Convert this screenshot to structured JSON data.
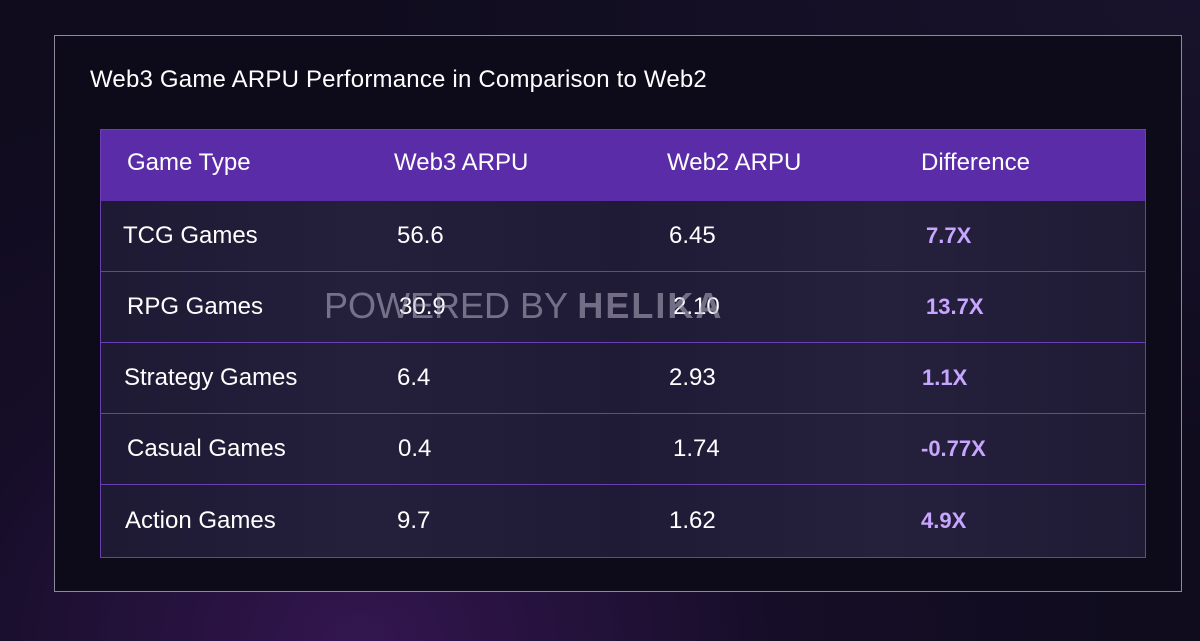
{
  "title": "Web3 Game ARPU Performance in Comparison to Web2",
  "columns": [
    "Game Type",
    "Web3 ARPU",
    "Web2 ARPU",
    "Difference"
  ],
  "rows": [
    {
      "game_type": "TCG Games",
      "web3_arpu": "56.6",
      "web2_arpu": "6.45",
      "difference": "7.7X"
    },
    {
      "game_type": "RPG Games",
      "web3_arpu": "30.9",
      "web2_arpu": "2.10",
      "difference": "13.7X"
    },
    {
      "game_type": "Strategy Games",
      "web3_arpu": "6.4",
      "web2_arpu": "2.93",
      "difference": "1.1X"
    },
    {
      "game_type": "Casual Games",
      "web3_arpu": "0.4",
      "web2_arpu": "1.74",
      "difference": "-0.77X"
    },
    {
      "game_type": "Action Games",
      "web3_arpu": "9.7",
      "web2_arpu": "1.62",
      "difference": "4.9X"
    }
  ],
  "watermark": {
    "prefix": "POWERED BY ",
    "brand": "HELIKA"
  },
  "colors": {
    "header_bg": "#5b2ca8",
    "difference_text": "#c8a6ff",
    "row_border": "#6a3fb3"
  }
}
